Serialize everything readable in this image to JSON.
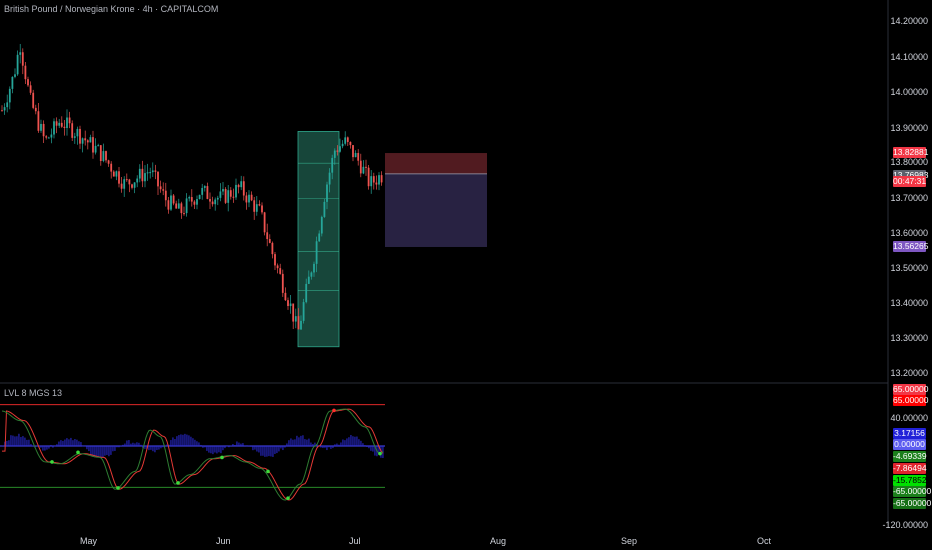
{
  "header": {
    "symbol_title": "British Pound / Norwegian Krone · 4h · CAPITALCOM",
    "oscillator_title": "LVL 8 MGS 13"
  },
  "price_axis": {
    "labels": [
      "14.20000",
      "14.10000",
      "14.00000",
      "13.90000",
      "13.80000",
      "13.70000",
      "13.60000",
      "13.50000",
      "13.40000",
      "13.30000",
      "13.20000"
    ]
  },
  "price_tags": {
    "stop_loss": "13.82881",
    "current_price": "13.76983",
    "countdown": "00:47:31",
    "take_profit": "13.56265"
  },
  "osc_axis": {
    "labels": [
      "40.00000",
      "-120.00000"
    ]
  },
  "osc_tags": {
    "upper_a": "65.00000",
    "upper_b": "65.00000",
    "blue": "3.17156",
    "zero": "0.00000",
    "g1": "-4.69339",
    "r1": "-7.86494",
    "g2": "-15.78520",
    "lower_a": "-65.00000",
    "lower_b": "-65.00000"
  },
  "time_axis": {
    "months": [
      "May",
      "Jun",
      "Jul",
      "Aug",
      "Sep",
      "Oct"
    ]
  },
  "colors": {
    "background": "#000000",
    "up": "#26a69a",
    "down": "#ef5350",
    "long_zone": "#1f5e4e",
    "short_risk": "#5a1e24",
    "short_reward": "#2a2446",
    "take_profit_tag": "#7e57c2",
    "osc_upper_line": "#ff2d2d",
    "osc_lower_line": "#2e9d2e",
    "osc_mid_line": "#4a4aff"
  }
}
